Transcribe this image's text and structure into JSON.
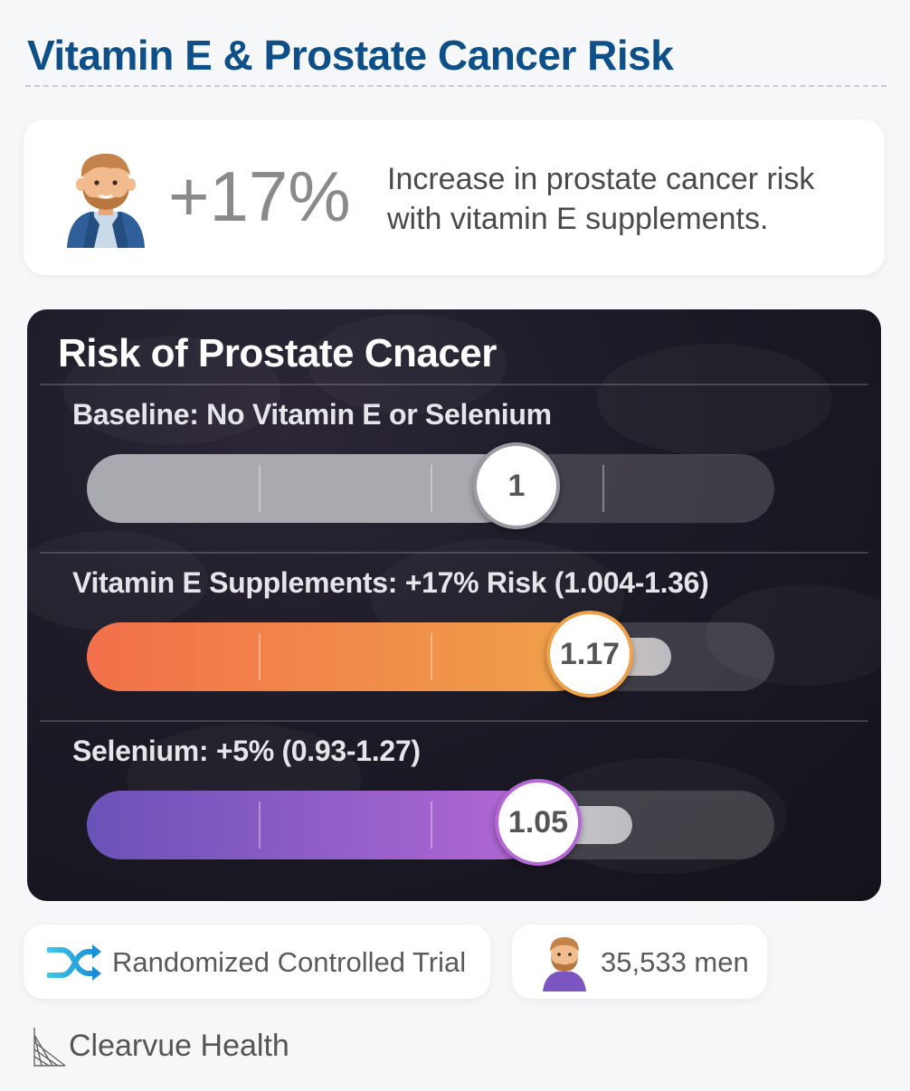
{
  "header": {
    "title": "Vitamin E & Prostate Cancer Risk"
  },
  "stat": {
    "value": "+17%",
    "description": "Increase in prostate cancer risk with vitamin E supplements.",
    "icon": "man-avatar-icon"
  },
  "chart_data": {
    "type": "bar",
    "title": "Risk of Prostate Cnacer",
    "scale": [
      0,
      1.6
    ],
    "rows": [
      {
        "label": "Baseline: No Vitamin E or Selenium",
        "value": 1,
        "display": "1",
        "ci": null
      },
      {
        "label": "Vitamin E Supplements: +17% Risk (1.004-1.36)",
        "value": 1.17,
        "display": "1.17",
        "ci": [
          1.004,
          1.36
        ]
      },
      {
        "label": "Selenium: +5% (0.93-1.27)",
        "value": 1.05,
        "display": "1.05",
        "ci": [
          0.93,
          1.27
        ]
      }
    ],
    "colors": {
      "baseline": "#a9a9b0",
      "vitamin_e": [
        "#f2704a",
        "#f0a24a"
      ],
      "selenium": [
        "#6a52b8",
        "#b368d4"
      ],
      "knob_border_baseline": "#9a9aa2",
      "knob_border_vitamin_e": "#f0a24a",
      "knob_border_selenium": "#b368d4"
    }
  },
  "footer": {
    "study_type": {
      "label": "Randomized Controlled Trial",
      "icon": "shuffle-icon"
    },
    "participants": {
      "label": "35,533 men",
      "icon": "man-avatar-icon"
    },
    "brand": {
      "name": "Clearvue Health",
      "icon": "clearvue-logo-icon"
    }
  }
}
